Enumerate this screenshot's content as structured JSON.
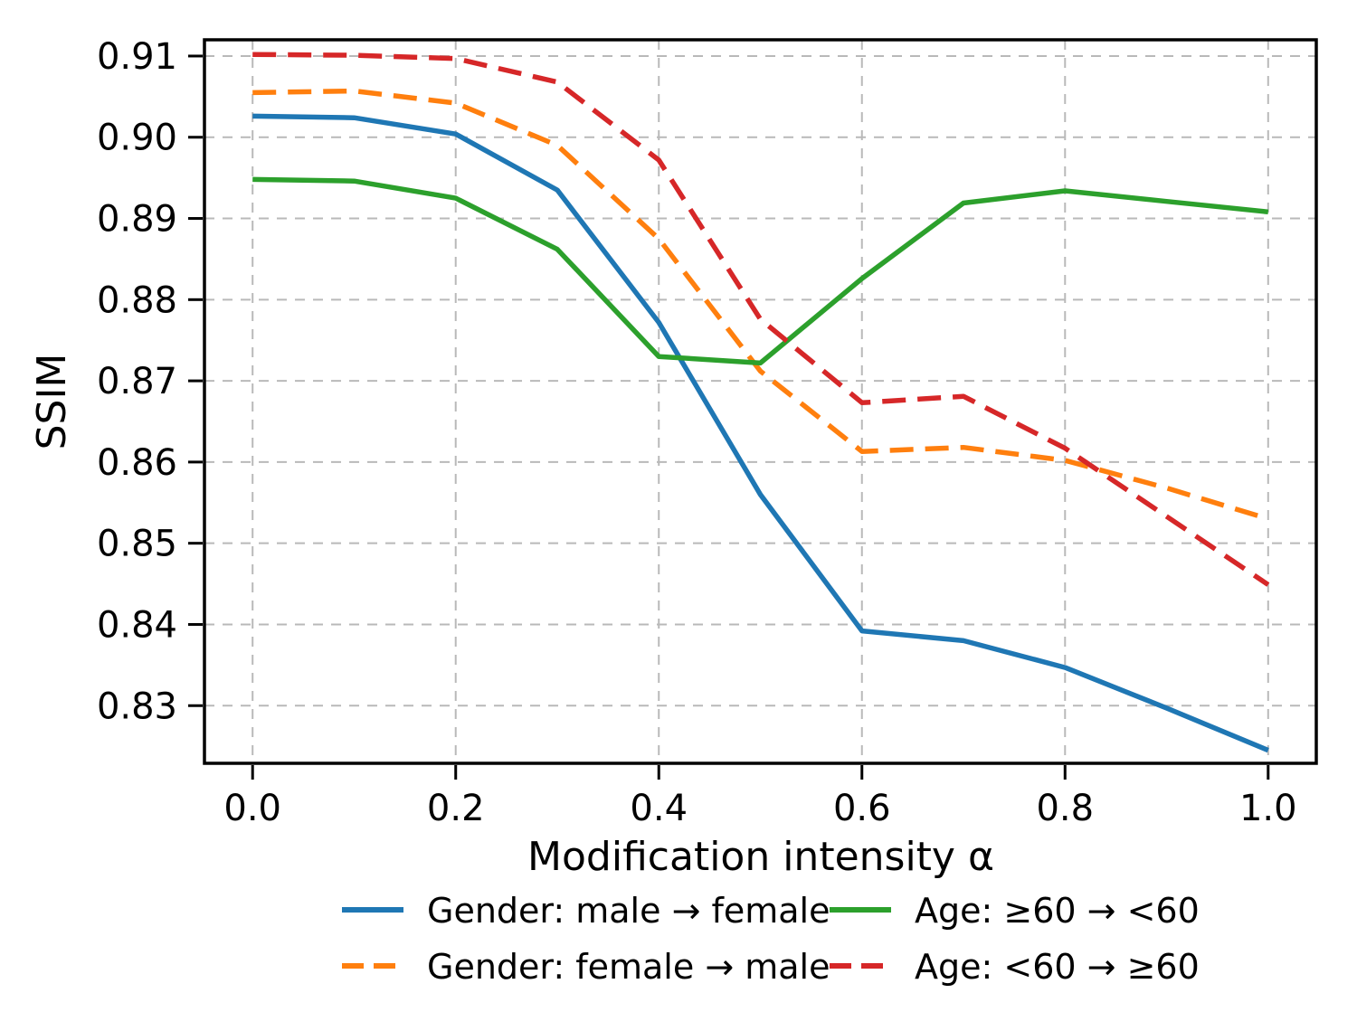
{
  "figure": {
    "background": "#ffffff",
    "grid_color": "#b9b9b9",
    "axis_color": "#000000"
  },
  "chart_data": {
    "type": "line",
    "title": "",
    "xlabel": "Modification intensity α",
    "ylabel": "SSIM",
    "grid": true,
    "legend": {
      "position": "below-chart",
      "columns": 2
    },
    "xlim": [
      -0.0474,
      1.0474
    ],
    "ylim": [
      0.8229,
      0.912
    ],
    "x_tick_values": [
      0.0,
      0.2,
      0.4,
      0.6,
      0.8,
      1.0
    ],
    "x_tick_labels": [
      "0.0",
      "0.2",
      "0.4",
      "0.6",
      "0.8",
      "1.0"
    ],
    "y_tick_values": [
      0.91,
      0.9,
      0.89,
      0.88,
      0.87,
      0.86,
      0.85,
      0.84,
      0.83
    ],
    "y_tick_labels": [
      "0.91",
      "0.90",
      "0.89",
      "0.88",
      "0.87",
      "0.86",
      "0.85",
      "0.84",
      "0.83"
    ],
    "x": [
      0.0,
      0.1,
      0.2,
      0.3,
      0.4,
      0.5,
      0.6,
      0.7,
      0.8,
      0.9,
      1.0
    ],
    "series": [
      {
        "name": "Gender: male → female",
        "color": "#1f77b4",
        "style": "solid",
        "values": [
          0.9026,
          0.9024,
          0.9004,
          0.8935,
          0.8772,
          0.856,
          0.8392,
          0.838,
          0.8347,
          0.8297,
          0.8245
        ]
      },
      {
        "name": "Gender: female → male",
        "color": "#ff7f0e",
        "style": "dashed",
        "values": [
          0.9055,
          0.9057,
          0.9042,
          0.899,
          0.8875,
          0.8712,
          0.8613,
          0.8618,
          0.8602,
          0.8568,
          0.853
        ]
      },
      {
        "name": "Age: ≥60 → <60",
        "color": "#2ca02c",
        "style": "solid",
        "values": [
          0.8948,
          0.8946,
          0.8925,
          0.8862,
          0.873,
          0.8722,
          0.8826,
          0.8919,
          0.8934,
          0.8921,
          0.8908
        ]
      },
      {
        "name": "Age: <60 → ≥60",
        "color": "#d62728",
        "style": "dashed",
        "values": [
          0.9102,
          0.9101,
          0.9097,
          0.9068,
          0.8972,
          0.8776,
          0.8673,
          0.8681,
          0.8617,
          0.8533,
          0.8449
        ]
      }
    ]
  }
}
